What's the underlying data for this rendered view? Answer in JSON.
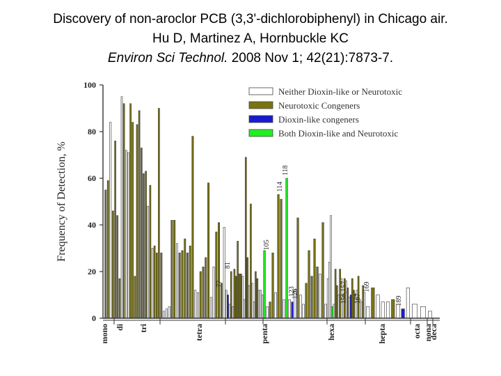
{
  "header": {
    "title_line": "Discovery of non-aroclor PCB (3,3'-dichlorobiphenyl) in Chicago air.",
    "authors_line": "Hu D, Martinez A, Hornbuckle KC",
    "journal": "Environ Sci Technol.",
    "citation_rest": " 2008 Nov 1; 42(21):7873-7."
  },
  "chart_data": {
    "type": "bar",
    "ylabel": "Frequency of Detection, %",
    "ylim": [
      0,
      100
    ],
    "yticks": [
      0,
      20,
      40,
      60,
      80,
      100
    ],
    "colors": {
      "Neither Dioxin-like or Neurotoxic": "#ffffff",
      "Neurotoxic Congeners": "#7a7410",
      "Dioxin-like congeners": "#1a1ad0",
      "Both Dioxin-like and Neurotoxic": "#22ee22"
    },
    "legend": [
      "Neither Dioxin-like or Neurotoxic",
      "Neurotoxic Congeners",
      "Dioxin-like congeners",
      "Both Dioxin-like and Neurotoxic"
    ],
    "legend_position": "top-right",
    "homolog_groups": [
      {
        "name": "mono",
        "bars": [
          55,
          59,
          84,
          46
        ]
      },
      {
        "name": "di",
        "bars": [
          76,
          44,
          17,
          95,
          92,
          72,
          71,
          92,
          84,
          18,
          83,
          89,
          73,
          62,
          63,
          48,
          57,
          30,
          31,
          28,
          90
        ]
      },
      {
        "name": "tri",
        "bars": [
          28,
          3,
          4,
          5,
          42,
          42,
          32,
          28,
          29,
          34,
          28,
          31,
          78,
          12,
          11,
          20,
          22,
          26,
          58,
          9,
          22,
          37,
          41,
          15,
          39
        ]
      },
      {
        "name": "tetra",
        "bars": [
          12,
          10,
          6,
          20,
          5,
          21,
          18,
          33,
          19,
          19,
          18,
          8,
          69,
          26,
          14,
          49,
          15,
          7,
          20,
          17,
          12,
          12,
          10
        ]
      },
      {
        "name": "penta",
        "bars": [
          29,
          5,
          7,
          28,
          11,
          53,
          51,
          8,
          60,
          8,
          7,
          12,
          43,
          10,
          6,
          15,
          29,
          18,
          34,
          22,
          19,
          41,
          6
        ]
      },
      {
        "name": "hexa",
        "bars": [
          17,
          24,
          44,
          5,
          6,
          21,
          14,
          10,
          21,
          17,
          10,
          17,
          16,
          13,
          9,
          10,
          17,
          12,
          10,
          12,
          18,
          8,
          7,
          14,
          11
        ]
      },
      {
        "name": "hepta",
        "bars": [
          5,
          13,
          10,
          7,
          7,
          8,
          6,
          4,
          13
        ]
      },
      {
        "name": "octa",
        "bars": [
          6,
          5
        ]
      },
      {
        "name": "nona",
        "bars": [
          3
        ]
      },
      {
        "name": "deca",
        "bars": []
      }
    ],
    "annotations": [
      {
        "label": "77",
        "value": 12,
        "category": "Dioxin-like congeners"
      },
      {
        "label": "81",
        "value": 20,
        "category": "Both Dioxin-like and Neurotoxic"
      },
      {
        "label": "105",
        "value": 28,
        "category": "Both Dioxin-like and Neurotoxic"
      },
      {
        "label": "114",
        "value": 53,
        "category": "Both Dioxin-like and Neurotoxic"
      },
      {
        "label": "118",
        "value": 60,
        "category": "Both Dioxin-like and Neurotoxic"
      },
      {
        "label": "123",
        "value": 8,
        "category": "Dioxin-like congeners"
      },
      {
        "label": "126",
        "value": 7,
        "category": "Dioxin-like congeners"
      },
      {
        "label": "156,157",
        "value": 5,
        "category": "Both Dioxin-like and Neurotoxic"
      },
      {
        "label": "167",
        "value": 5,
        "category": "Dioxin-like congeners"
      },
      {
        "label": "169",
        "value": 10,
        "category": "Dioxin-like congeners"
      },
      {
        "label": "189",
        "value": 4,
        "category": "Dioxin-like congeners"
      }
    ]
  }
}
